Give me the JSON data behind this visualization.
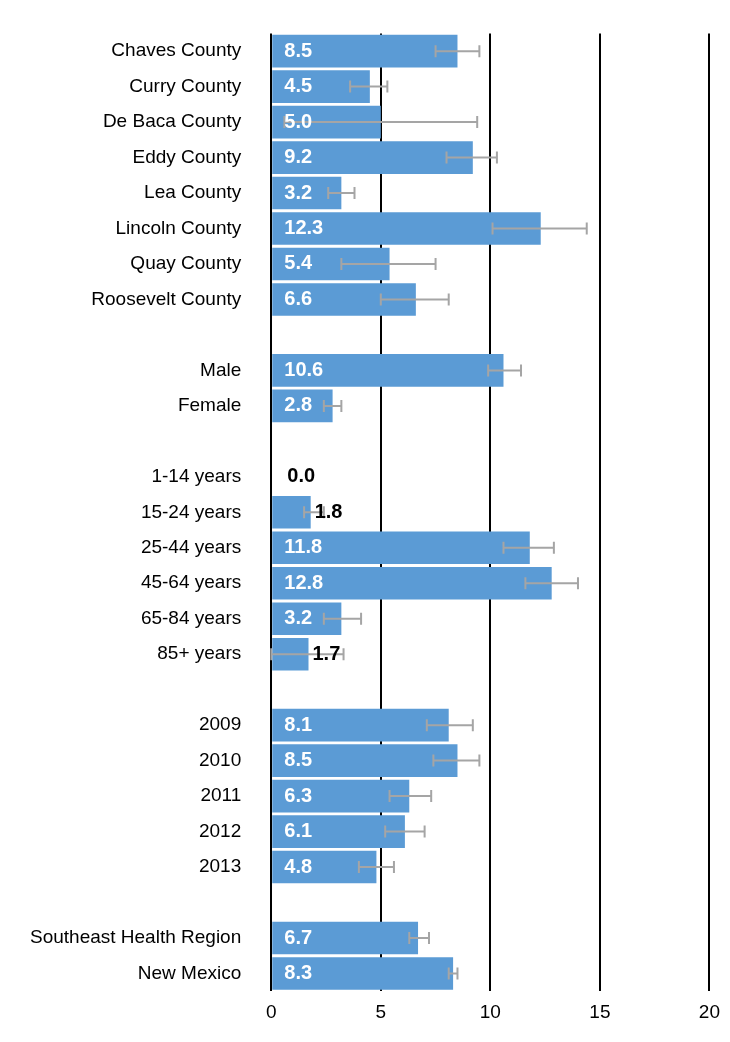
{
  "chart_data": {
    "type": "bar",
    "orientation": "horizontal",
    "categories": [
      "Chaves County",
      "Curry County",
      "De Baca County",
      "Eddy County",
      "Lea County",
      "Lincoln County",
      "Quay County",
      "Roosevelt County",
      null,
      "Male",
      "Female",
      null,
      "1-14 years",
      "15-24 years",
      "25-44 years",
      "45-64 years",
      "65-84 years",
      "85+ years",
      null,
      "2009",
      "2010",
      "2011",
      "2012",
      "2013",
      null,
      "Southeast Health Region",
      "New Mexico"
    ],
    "values": [
      8.5,
      4.5,
      5.0,
      9.2,
      3.2,
      12.3,
      5.4,
      6.6,
      null,
      10.6,
      2.8,
      null,
      0.0,
      1.8,
      11.8,
      12.8,
      3.2,
      1.7,
      null,
      8.1,
      8.5,
      6.3,
      6.1,
      4.8,
      null,
      6.7,
      8.3
    ],
    "value_labels": [
      "8.5",
      "4.5",
      "5.0",
      "9.2",
      "3.2",
      "12.3",
      "5.4",
      "6.6",
      null,
      "10.6",
      "2.8",
      null,
      "0.0",
      "1.8",
      "11.8",
      "12.8",
      "3.2",
      "1.7",
      null,
      "8.1",
      "8.5",
      "6.3",
      "6.1",
      "4.8",
      null,
      "6.7",
      "8.3"
    ],
    "errors": [
      [
        7.5,
        9.5
      ],
      [
        3.6,
        5.3
      ],
      [
        0.6,
        9.4
      ],
      [
        8.0,
        10.3
      ],
      [
        2.6,
        3.8
      ],
      [
        10.1,
        14.4
      ],
      [
        3.2,
        7.5
      ],
      [
        5.0,
        8.1
      ],
      null,
      [
        9.9,
        11.4
      ],
      [
        2.4,
        3.2
      ],
      null,
      null,
      [
        1.5,
        2.4
      ],
      [
        10.6,
        12.9
      ],
      [
        11.6,
        14.0
      ],
      [
        2.4,
        4.1
      ],
      [
        0.0,
        3.3
      ],
      null,
      [
        7.1,
        9.2
      ],
      [
        7.4,
        9.5
      ],
      [
        5.4,
        7.3
      ],
      [
        5.2,
        7.0
      ],
      [
        4.0,
        5.6
      ],
      null,
      [
        6.3,
        7.2
      ],
      [
        8.1,
        8.5
      ]
    ],
    "color": "#5b9bd5",
    "xlim": [
      0,
      20
    ],
    "xticks": [
      0,
      5,
      10,
      15,
      20
    ],
    "grid": "x",
    "legend": false
  }
}
